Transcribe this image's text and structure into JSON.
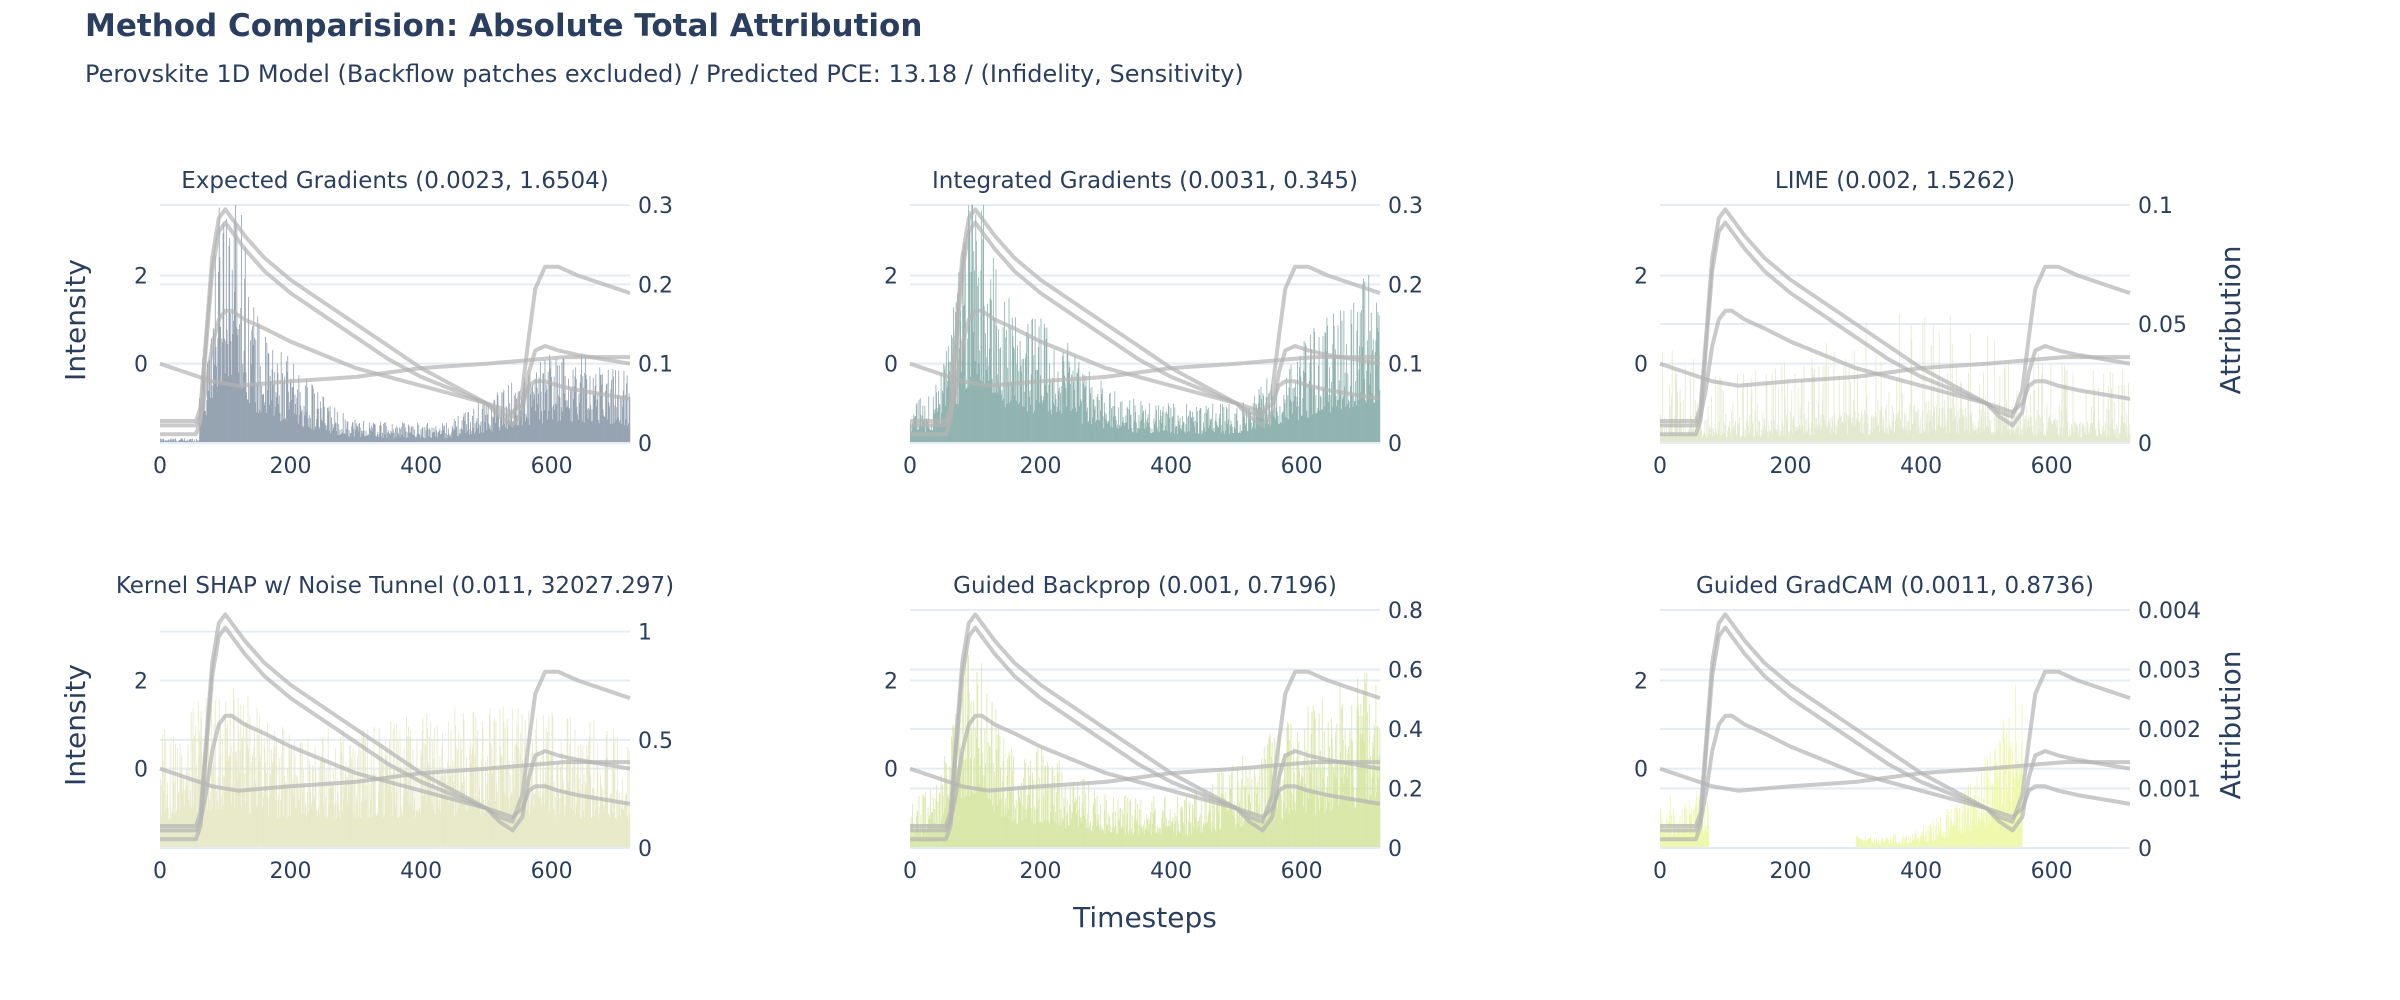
{
  "title": "Method Comparision: Absolute Total Attribution",
  "subtitle": "Perovskite 1D Model (Backflow patches excluded) / Predicted PCE: 13.18 / (Infidelity, Sensitivity)",
  "chart_data": {
    "type": "bar",
    "description_mode": "small multiples; grey Intensity lines on left y-axis, attribution bars on right y-axis",
    "xlabel": "Timesteps",
    "ylabel_left": "Intensity",
    "ylabel_right": "Attribution",
    "x_range": [
      0,
      720
    ],
    "x_ticks": [
      0,
      200,
      400,
      600
    ],
    "intensity_range": [
      -1.8,
      3.6
    ],
    "intensity_ticks": [
      0,
      2
    ],
    "intensity_series": [
      {
        "x": [
          0,
          55,
          62,
          70,
          80,
          90,
          100,
          110,
          130,
          160,
          200,
          250,
          300,
          350,
          400,
          450,
          500,
          520,
          540,
          555,
          565,
          575,
          590,
          610,
          640,
          680,
          720
        ],
        "y": [
          -1.3,
          -1.3,
          -1.0,
          0.5,
          2.4,
          3.3,
          3.5,
          3.3,
          2.9,
          2.4,
          1.9,
          1.4,
          0.9,
          0.4,
          -0.1,
          -0.5,
          -0.9,
          -1.1,
          -1.2,
          -0.6,
          0.6,
          1.7,
          2.2,
          2.2,
          2.0,
          1.8,
          1.6
        ]
      },
      {
        "x": [
          0,
          55,
          62,
          70,
          80,
          90,
          100,
          110,
          130,
          160,
          200,
          250,
          300,
          350,
          400,
          450,
          500,
          520,
          540,
          555,
          565,
          575,
          590,
          610,
          640,
          680,
          720
        ],
        "y": [
          -1.6,
          -1.6,
          -1.3,
          0.3,
          2.1,
          3.0,
          3.2,
          3.0,
          2.6,
          2.1,
          1.6,
          1.1,
          0.6,
          0.1,
          -0.3,
          -0.6,
          -0.9,
          -1.2,
          -1.4,
          -1.1,
          -0.2,
          0.3,
          0.4,
          0.3,
          0.2,
          0.1,
          0.0
        ]
      },
      {
        "x": [
          0,
          55,
          62,
          70,
          80,
          90,
          100,
          110,
          130,
          160,
          200,
          250,
          300,
          350,
          400,
          450,
          500,
          520,
          540,
          555,
          565,
          575,
          590,
          610,
          640,
          680,
          720
        ],
        "y": [
          -1.4,
          -1.4,
          -1.2,
          -0.6,
          0.4,
          1.0,
          1.2,
          1.2,
          1.0,
          0.8,
          0.5,
          0.2,
          -0.1,
          -0.3,
          -0.5,
          -0.7,
          -0.9,
          -1.0,
          -1.1,
          -0.9,
          -0.5,
          -0.4,
          -0.4,
          -0.5,
          -0.6,
          -0.7,
          -0.8
        ]
      },
      {
        "x": [
          0,
          40,
          80,
          120,
          160,
          200,
          250,
          300,
          350,
          400,
          450,
          500,
          540,
          580,
          620,
          660,
          720
        ],
        "y": [
          0.0,
          -0.2,
          -0.4,
          -0.5,
          -0.45,
          -0.4,
          -0.35,
          -0.3,
          -0.2,
          -0.1,
          -0.05,
          0.0,
          0.05,
          0.1,
          0.15,
          0.15,
          0.15
        ]
      }
    ],
    "panels": [
      {
        "title": "Expected Gradients (0.0023, 1.6504)",
        "method": "Expected Gradients",
        "infidelity": 0.0023,
        "sensitivity": 1.6504,
        "color": "#8494a4",
        "attr_range": [
          0,
          0.3
        ],
        "attr_ticks": [
          "0",
          "0.1",
          "0.2",
          "0.3"
        ],
        "profile": "expected_gradients"
      },
      {
        "title": "Integrated Gradients (0.0031, 0.345)",
        "method": "Integrated Gradients",
        "infidelity": 0.0031,
        "sensitivity": 0.345,
        "color": "#7fa8a2",
        "attr_range": [
          0,
          0.3
        ],
        "attr_ticks": [
          "0",
          "0.1",
          "0.2",
          "0.3"
        ],
        "profile": "integrated_gradients"
      },
      {
        "title": "LIME (0.002, 1.5262)",
        "method": "LIME",
        "infidelity": 0.002,
        "sensitivity": 1.5262,
        "color": "#dfe6c8",
        "attr_range": [
          0,
          0.1
        ],
        "attr_ticks": [
          "0",
          "0.05",
          "0.1"
        ],
        "profile": "lime"
      },
      {
        "title": "Kernel SHAP w/ Noise Tunnel (0.011, 32027.297)",
        "method": "Kernel SHAP w/ Noise Tunnel",
        "infidelity": 0.011,
        "sensitivity": 32027.297,
        "color": "#e3e6c0",
        "attr_range": [
          0,
          1.1
        ],
        "attr_ticks": [
          "0",
          "0.5",
          "1"
        ],
        "profile": "kernel_shap"
      },
      {
        "title": "Guided Backprop (0.001, 0.7196)",
        "method": "Guided Backprop",
        "infidelity": 0.001,
        "sensitivity": 0.7196,
        "color": "#d4e39c",
        "attr_range": [
          0,
          0.8
        ],
        "attr_ticks": [
          "0",
          "0.2",
          "0.4",
          "0.6",
          "0.8"
        ],
        "profile": "guided_backprop"
      },
      {
        "title": "Guided GradCAM (0.0011, 0.8736)",
        "method": "Guided GradCAM",
        "infidelity": 0.0011,
        "sensitivity": 0.8736,
        "color": "#ecf7a0",
        "attr_range": [
          0,
          0.004
        ],
        "attr_ticks": [
          "0",
          "0.001",
          "0.002",
          "0.003",
          "0.004"
        ],
        "profile": "guided_gradcam"
      }
    ]
  },
  "colors": {
    "text": "#2a3f5f",
    "grid": "#e5ecf6",
    "intensity_line": "#b4b4b4"
  }
}
